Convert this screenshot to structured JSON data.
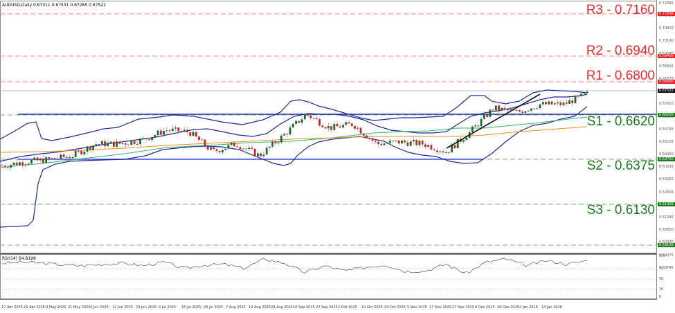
{
  "header": {
    "title": "AUDUSD,Daily  0.67311 0.67531 0.67265 0.67522"
  },
  "rsi_header": {
    "title": "RSI(14) 64.8198"
  },
  "levels": {
    "r3": {
      "label": "R3 - 0.7160",
      "value": 0.716,
      "tag": "0.71600",
      "color": "#ff0000"
    },
    "r2": {
      "label": "R2 - 0.6940",
      "value": 0.694,
      "tag": "0.69400",
      "color": "#ff0000"
    },
    "r1": {
      "label": "R1 - 0.6800",
      "value": 0.68,
      "tag": "0.68000",
      "color": "#ff0000"
    },
    "s1": {
      "label": "S1 - 0.6620",
      "value": 0.662,
      "tag": "0.66200",
      "color": "#1a7a1a"
    },
    "s2": {
      "label": "S2 - 0.6375",
      "value": 0.6375,
      "tag": "0.63750",
      "color": "#1a7a1a"
    },
    "s3": {
      "label": "S3 - 0.6130",
      "value": 0.613,
      "tag": "0.61300",
      "color": "#1a7a1a"
    },
    "s4": {
      "value": 0.591,
      "tag": "0.59100",
      "color": "#1a7a1a"
    }
  },
  "current_price_tag": "0.67522",
  "price_axis": [
    "0.72095",
    "0.71450",
    "0.70820",
    "0.70190",
    "0.69545",
    "0.68915",
    "0.68270",
    "0.67640",
    "0.67010",
    "0.66365",
    "0.65735",
    "0.65105",
    "0.64460",
    "0.63830",
    "0.63200",
    "0.62555",
    "0.61925",
    "0.61295",
    "0.60650",
    "0.60020",
    "0.59375",
    "0.58745"
  ],
  "rsi_axis": [
    "100",
    "70",
    "50",
    "30",
    "0"
  ],
  "date_axis": [
    "17 Apr 2025",
    "29 Apr 2025",
    "9 May 2025",
    "21 May 2025",
    "2 Jun 2025",
    "12 Jun 2025",
    "24 Jun 2025",
    "4 Jul 2025",
    "16 Jul 2025",
    "28 Jul 2025",
    "7 Aug 2025",
    "19 Aug 2025",
    "29 Aug 2025",
    "10 Sep 2025",
    "22 Sep 2025",
    "2 Oct 2025",
    "14 Oct 2025",
    "24 Oct 2025",
    "5 Nov 2025",
    "17 Nov 2025",
    "27 Nov 2025",
    "9 Dec 2025",
    "19 Dec 2025",
    "2 Jan 2026",
    "14 Jan 2026"
  ],
  "chart_data": {
    "type": "candlestick",
    "title": "AUDUSD, Daily",
    "symbol": "AUDUSD",
    "timeframe": "Daily",
    "ohlc_last": {
      "open": 0.67311,
      "high": 0.67531,
      "low": 0.67265,
      "close": 0.67522
    },
    "x_range": [
      "17 Apr 2025",
      "20 Jan 2026"
    ],
    "ylim": [
      0.5875,
      0.721
    ],
    "horizontal_levels": [
      {
        "name": "R3",
        "value": 0.716,
        "style": "dashed",
        "color": "red"
      },
      {
        "name": "R2",
        "value": 0.694,
        "style": "dashed",
        "color": "red"
      },
      {
        "name": "R1",
        "value": 0.68,
        "style": "dashed",
        "color": "red"
      },
      {
        "name": "S1",
        "value": 0.662,
        "style": "dashed",
        "color": "green"
      },
      {
        "name": "S2",
        "value": 0.6375,
        "style": "dashed",
        "color": "green"
      },
      {
        "name": "S3",
        "value": 0.613,
        "style": "dashed",
        "color": "green"
      },
      {
        "name": "S4",
        "value": 0.591,
        "style": "dashed",
        "color": "green"
      }
    ],
    "drawn_lines": [
      {
        "name": "range-top",
        "value": 0.662,
        "color": "blue",
        "from": "29 Apr 2025",
        "to": "20 Jan 2026"
      },
      {
        "name": "range-bottom",
        "value": 0.6375,
        "color": "blue",
        "from": "29 Apr 2025",
        "to": "27 Nov 2025"
      },
      {
        "name": "uptrend-line",
        "from": [
          "21 Nov 2025",
          0.645
        ],
        "to": [
          "9 Jan 2026",
          0.677
        ],
        "color": "black"
      }
    ],
    "indicators": [
      "Bollinger Bands (blue)",
      "Moving Average (green)",
      "Moving Average (orange)",
      "RSI(14)"
    ],
    "approx_close_path": {
      "dates": [
        "17 Apr 2025",
        "29 Apr 2025",
        "9 May 2025",
        "21 May 2025",
        "2 Jun 2025",
        "12 Jun 2025",
        "24 Jun 2025",
        "4 Jul 2025",
        "16 Jul 2025",
        "28 Jul 2025",
        "7 Aug 2025",
        "19 Aug 2025",
        "29 Aug 2025",
        "10 Sep 2025",
        "22 Sep 2025",
        "2 Oct 2025",
        "14 Oct 2025",
        "24 Oct 2025",
        "5 Nov 2025",
        "17 Nov 2025",
        "27 Nov 2025",
        "9 Dec 2025",
        "19 Dec 2025",
        "2 Jan 2026",
        "14 Jan 2026",
        "20 Jan 2026"
      ],
      "values": [
        0.639,
        0.641,
        0.642,
        0.644,
        0.65,
        0.65,
        0.652,
        0.657,
        0.656,
        0.646,
        0.65,
        0.644,
        0.654,
        0.665,
        0.658,
        0.66,
        0.65,
        0.651,
        0.65,
        0.646,
        0.656,
        0.668,
        0.666,
        0.67,
        0.67,
        0.6752
      ]
    },
    "rsi": {
      "name": "RSI(14)",
      "last": 64.8198,
      "levels": [
        70,
        50,
        30
      ],
      "ylim": [
        0,
        100
      ],
      "approx_values": [
        60,
        62,
        60,
        57,
        55,
        58,
        60,
        55,
        62,
        50,
        56,
        58,
        50,
        68,
        60,
        42,
        55,
        45,
        52,
        57,
        44,
        45,
        58,
        40,
        62,
        68,
        55,
        65,
        58,
        65
      ]
    }
  }
}
